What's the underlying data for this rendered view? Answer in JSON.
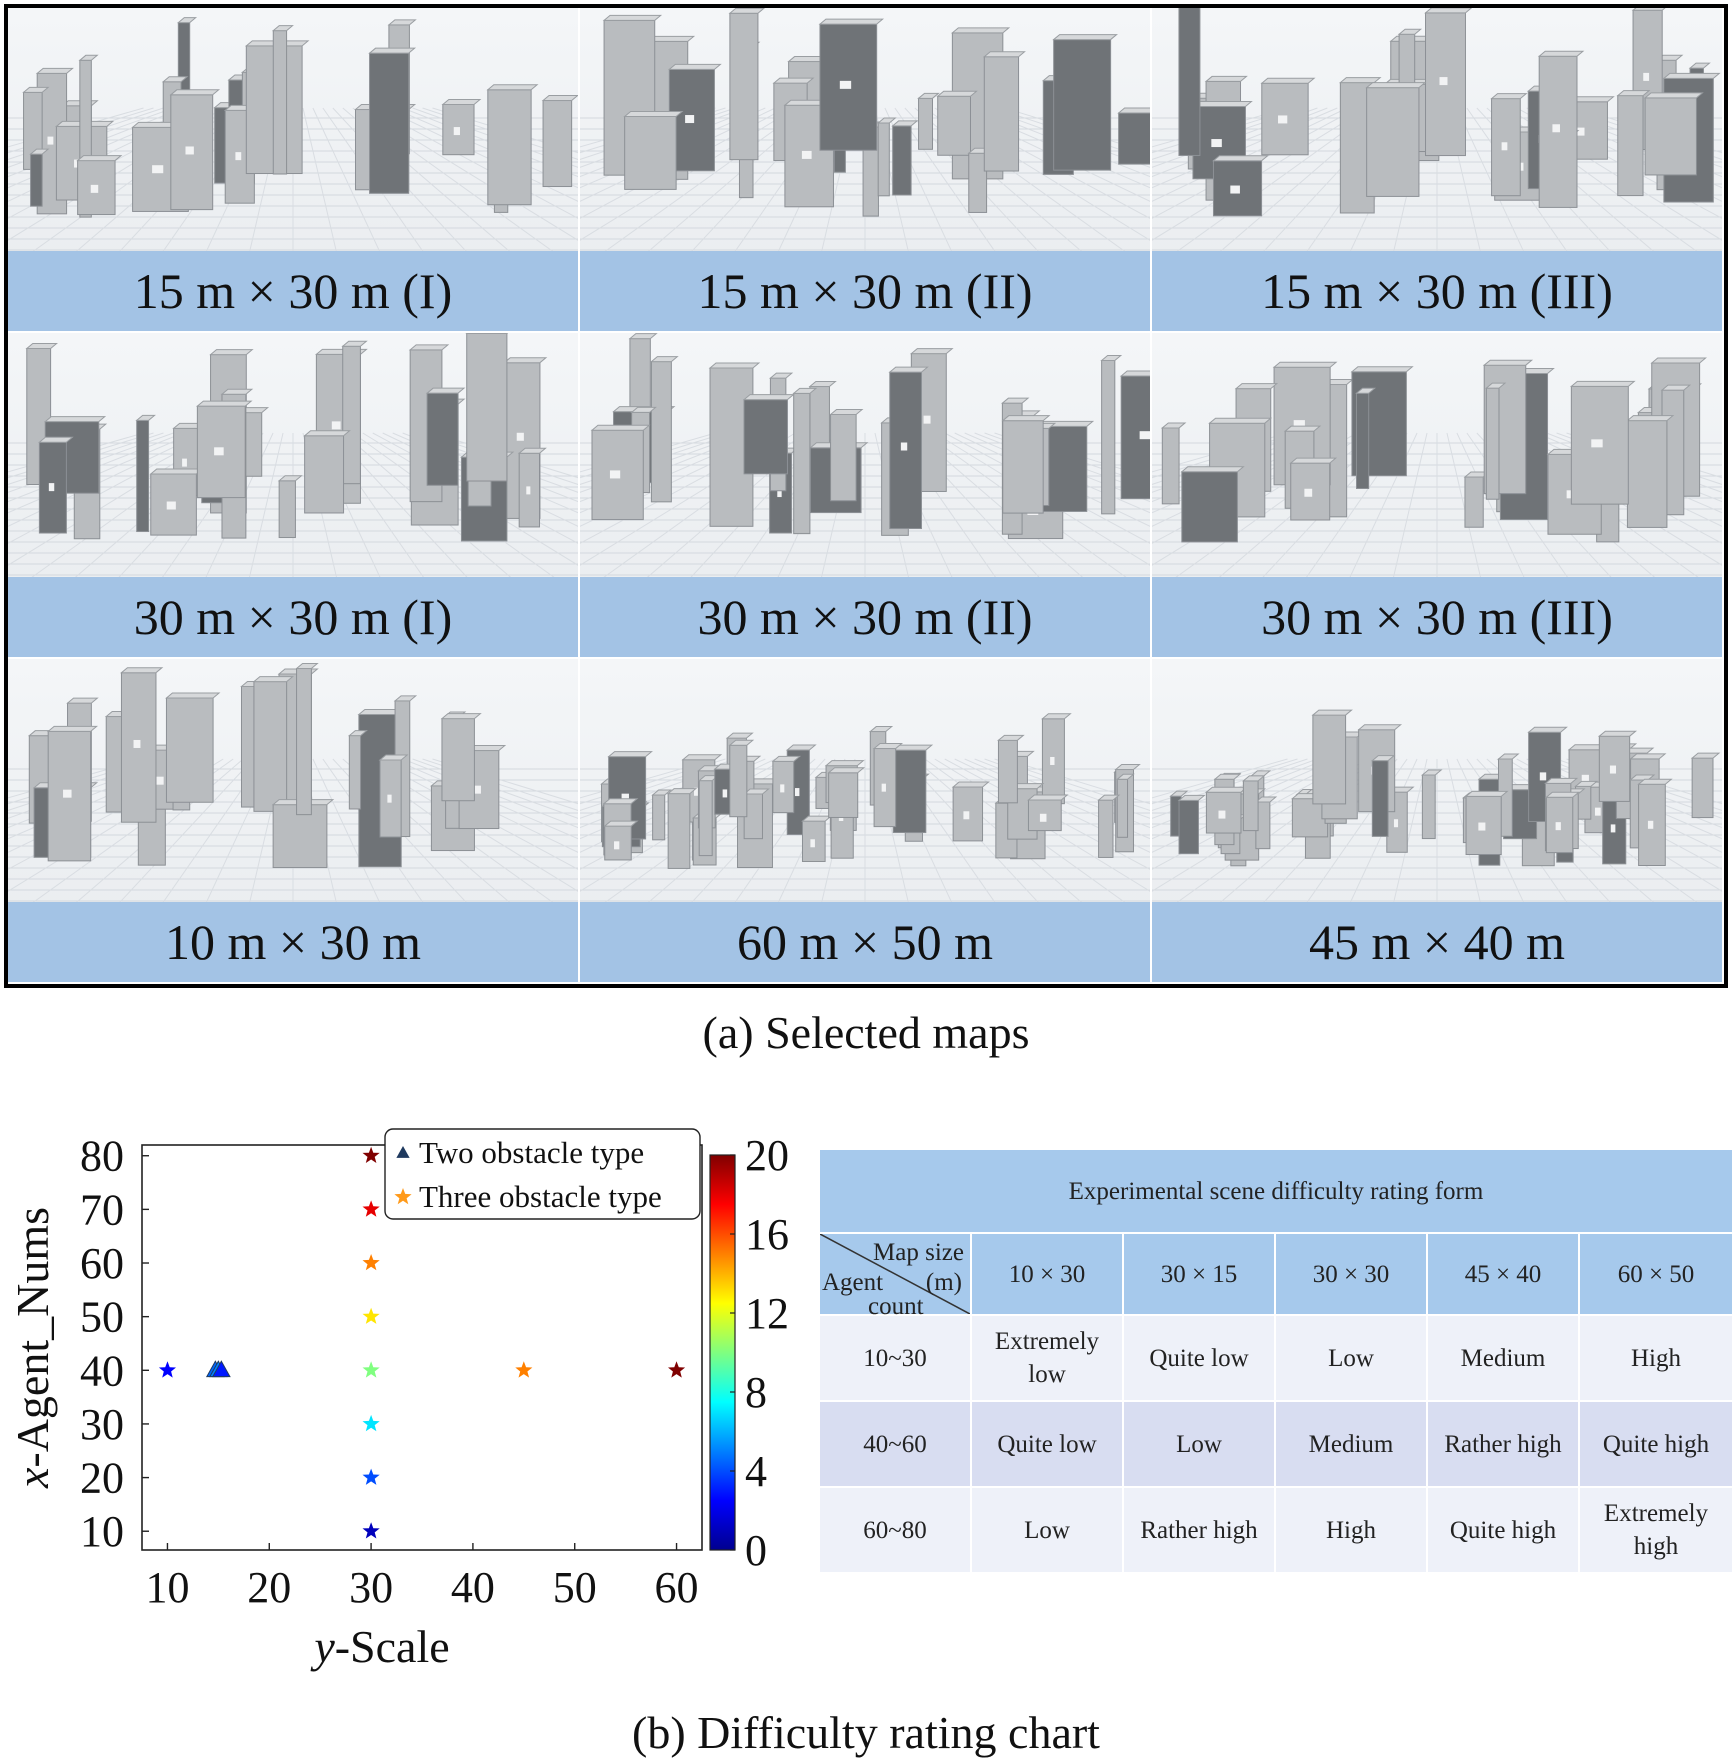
{
  "maps": [
    {
      "label": "15 m × 30 m (I)"
    },
    {
      "label": "15 m × 30 m (II)"
    },
    {
      "label": "15 m × 30 m (III)"
    },
    {
      "label": "30 m × 30 m (I)"
    },
    {
      "label": "30 m × 30 m (II)"
    },
    {
      "label": "30 m × 30 m (III)"
    },
    {
      "label": "10 m × 30 m"
    },
    {
      "label": "60 m × 50 m"
    },
    {
      "label": "45 m × 40 m"
    }
  ],
  "caption_a": "(a) Selected maps",
  "caption_b": "(b) Difficulty rating chart",
  "chart_data": {
    "type": "scatter",
    "xlabel_prefix": "y",
    "xlabel_rest": "-Scale",
    "ylabel_prefix": "x",
    "ylabel_rest": "-Agent_Nums",
    "xlim": [
      7.5,
      62.5
    ],
    "ylim": [
      6.5,
      82
    ],
    "xticks": [
      10,
      20,
      30,
      40,
      50,
      60
    ],
    "yticks": [
      10,
      20,
      30,
      40,
      50,
      60,
      70,
      80
    ],
    "grid": false,
    "legend_position": "top-right",
    "colormap": "jet",
    "colorbar": {
      "min": 0,
      "max": 20,
      "ticks": [
        0,
        4,
        8,
        12,
        16,
        20
      ]
    },
    "series": [
      {
        "name": "Two obstacle type",
        "marker": "triangle",
        "legend_color": "#1f3a5f",
        "points": [
          {
            "x": 15,
            "y": 40,
            "c": 4.5
          },
          {
            "x": 15,
            "y": 40,
            "c": 5
          },
          {
            "x": 15,
            "y": 40,
            "c": 3
          }
        ]
      },
      {
        "name": "Three obstacle type",
        "marker": "star",
        "legend_color": "#ff9a1a",
        "points": [
          {
            "x": 10,
            "y": 40,
            "c": 2.5
          },
          {
            "x": 30,
            "y": 10,
            "c": 1
          },
          {
            "x": 30,
            "y": 20,
            "c": 4
          },
          {
            "x": 30,
            "y": 30,
            "c": 7
          },
          {
            "x": 30,
            "y": 40,
            "c": 10
          },
          {
            "x": 30,
            "y": 50,
            "c": 13
          },
          {
            "x": 30,
            "y": 60,
            "c": 15
          },
          {
            "x": 30,
            "y": 70,
            "c": 18
          },
          {
            "x": 30,
            "y": 80,
            "c": 20
          },
          {
            "x": 45,
            "y": 40,
            "c": 15
          },
          {
            "x": 60,
            "y": 40,
            "c": 20
          }
        ]
      }
    ]
  },
  "table": {
    "title": "Experimental scene difficulty rating form",
    "corner": {
      "top": "Map size",
      "unit": "(m)",
      "left": "Agent",
      "bottom": "count"
    },
    "columns": [
      "10 × 30",
      "30 × 15",
      "30 × 30",
      "45 × 40",
      "60 × 50"
    ],
    "rows": [
      {
        "agents": "10~30",
        "cells": [
          "Extremely low",
          "Quite low",
          "Low",
          "Medium",
          "High"
        ]
      },
      {
        "agents": "40~60",
        "cells": [
          "Quite low",
          "Low",
          "Medium",
          "Rather high",
          "Quite high"
        ]
      },
      {
        "agents": "60~80",
        "cells": [
          "Low",
          "Rather high",
          "High",
          "Quite high",
          "Extremely high"
        ]
      }
    ]
  }
}
